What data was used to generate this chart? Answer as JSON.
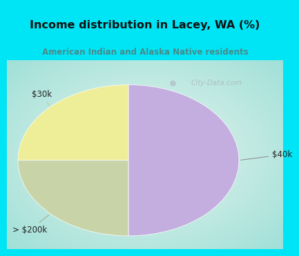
{
  "title": "Income distribution in Lacey, WA (%)",
  "subtitle": "American Indian and Alaska Native residents",
  "slices": [
    {
      "label": "$40k",
      "value": 50,
      "color": "#c4aee0"
    },
    {
      "label": "$30k",
      "value": 25,
      "color": "#eeee99"
    },
    {
      "label": "> $200k",
      "value": 25,
      "color": "#c8d4a8"
    }
  ],
  "start_angle": 90,
  "bg_cyan": "#00e5f5",
  "chart_bg_center": "#e8f5ee",
  "chart_bg_edge": "#b0e8e0",
  "title_color": "#111111",
  "subtitle_color": "#4a8a8a",
  "label_color": "#222222",
  "watermark": "City-Data.com",
  "watermark_color": "#b0b8c0"
}
